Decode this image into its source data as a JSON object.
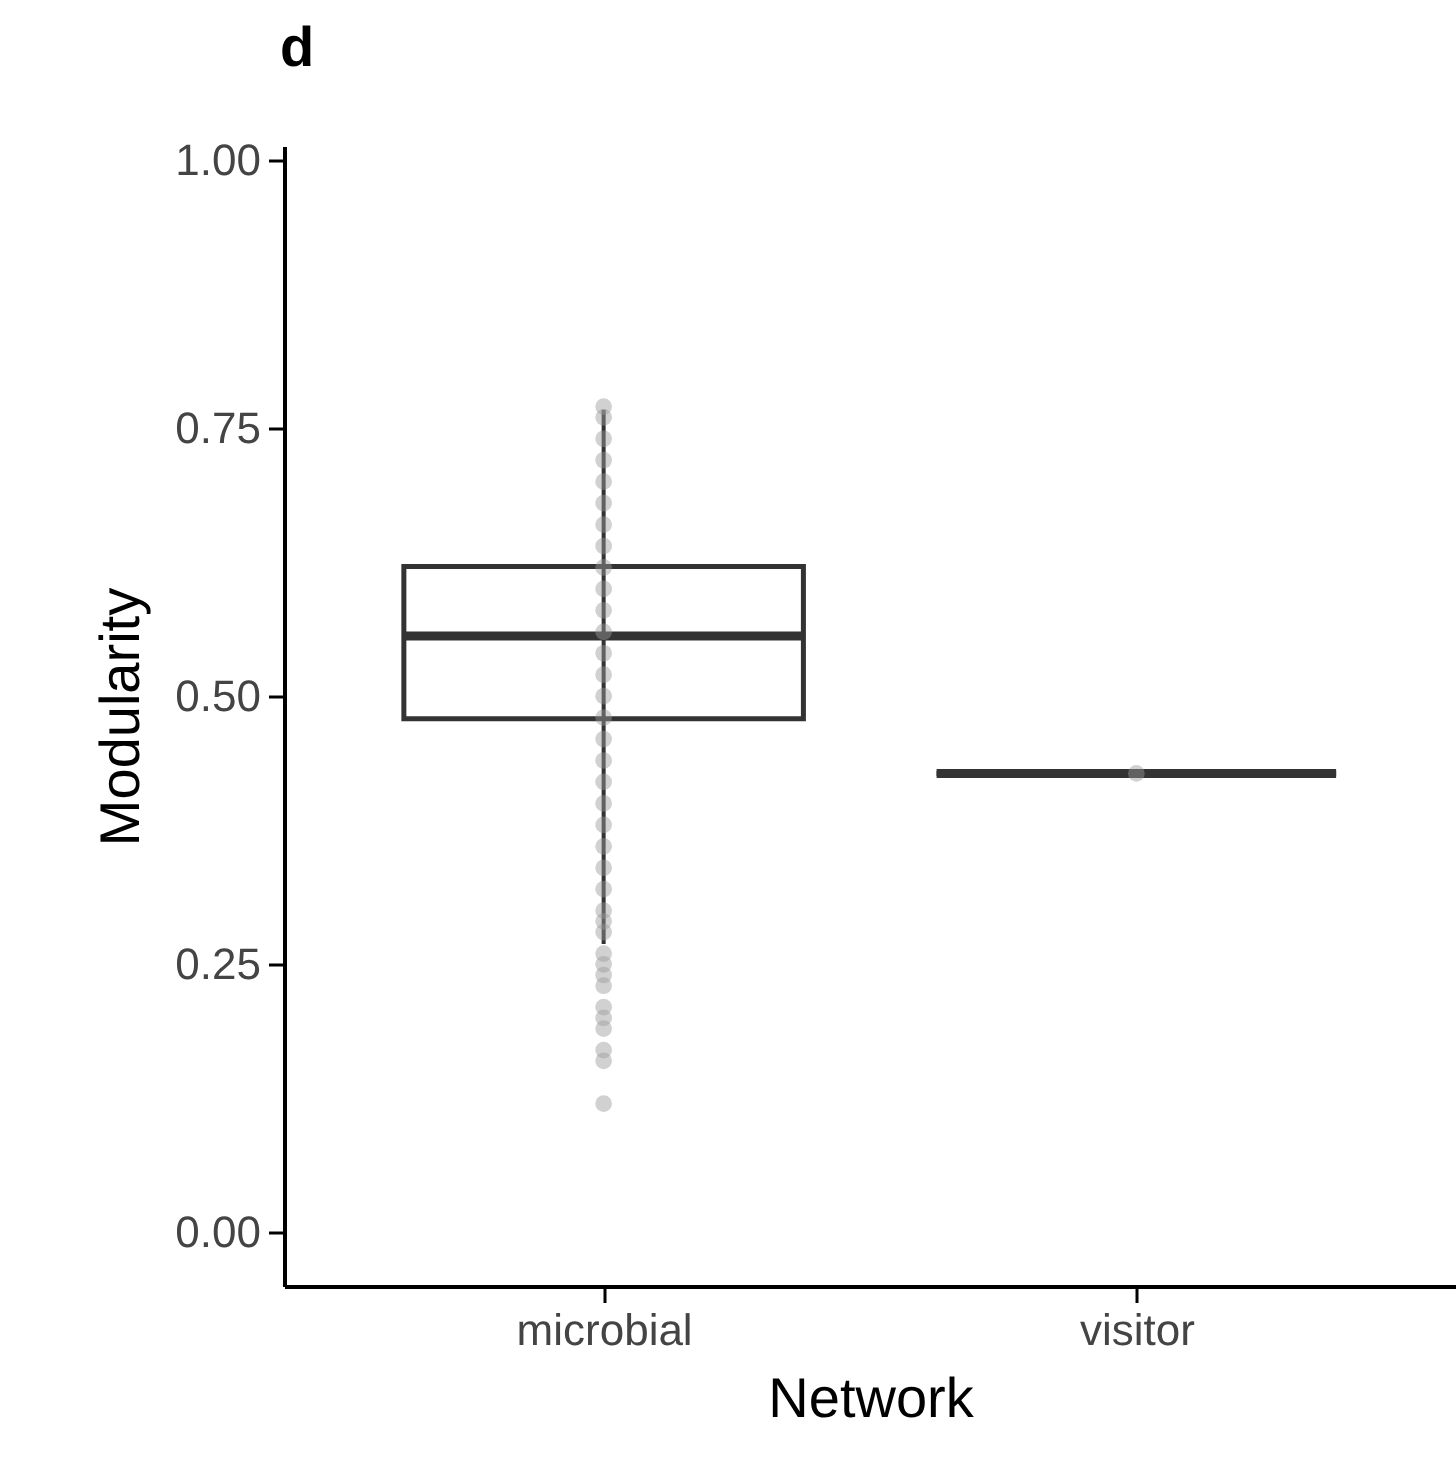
{
  "chart_data": {
    "type": "box",
    "title": "d",
    "xlabel": "Network",
    "ylabel": "Modularity",
    "categories": [
      "microbial",
      "visitor"
    ],
    "ylim": [
      -0.05,
      1.013
    ],
    "yticks": [
      {
        "value": 0,
        "label": "0.00"
      },
      {
        "value": 0.25,
        "label": "0.25"
      },
      {
        "value": 0.5,
        "label": "0.50"
      },
      {
        "value": 0.75,
        "label": "0.75"
      },
      {
        "value": 1,
        "label": "1.00"
      }
    ],
    "grid": false,
    "boxes": [
      {
        "low": 0.269,
        "q1": 0.479,
        "median": 0.556,
        "q3": 0.621,
        "high": 0.767
      },
      {
        "low": 0.428,
        "q1": 0.428,
        "median": 0.428,
        "q3": 0.428,
        "high": 0.428
      }
    ],
    "color": "#333333",
    "series": [
      {
        "type": "scatter",
        "color": "#999999",
        "x": [
          "microbial",
          "microbial",
          "microbial",
          "microbial",
          "microbial",
          "microbial",
          "microbial",
          "microbial",
          "microbial",
          "microbial",
          "microbial",
          "microbial",
          "microbial",
          "microbial",
          "microbial",
          "microbial",
          "microbial",
          "microbial",
          "microbial",
          "microbial",
          "microbial",
          "microbial",
          "microbial",
          "microbial",
          "microbial",
          "microbial",
          "microbial",
          "microbial",
          "microbial",
          "microbial",
          "microbial",
          "microbial",
          "microbial",
          "microbial",
          "microbial",
          "microbial",
          "microbial",
          "visitor"
        ],
        "values": [
          0.12,
          0.16,
          0.17,
          0.19,
          0.2,
          0.21,
          0.23,
          0.24,
          0.25,
          0.26,
          0.28,
          0.29,
          0.3,
          0.32,
          0.34,
          0.36,
          0.38,
          0.4,
          0.42,
          0.44,
          0.46,
          0.48,
          0.5,
          0.52,
          0.54,
          0.56,
          0.58,
          0.6,
          0.62,
          0.64,
          0.66,
          0.68,
          0.7,
          0.72,
          0.74,
          0.76,
          0.77,
          0.428
        ]
      }
    ]
  }
}
